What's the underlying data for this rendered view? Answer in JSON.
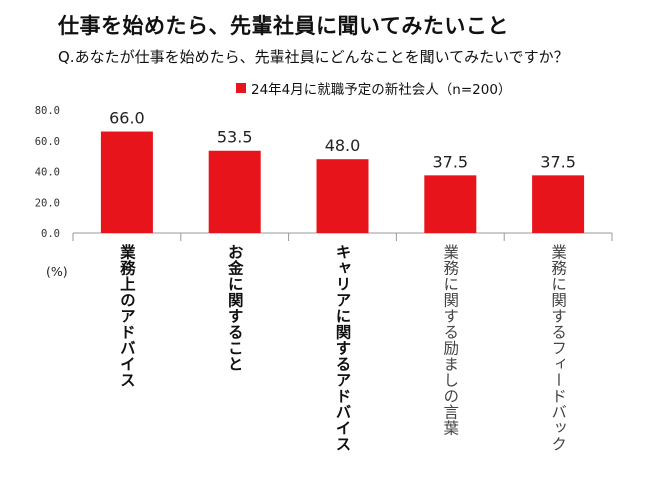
{
  "header": {
    "title": "仕事を始めたら、先輩社員に聞いてみたいこと",
    "question": "Q.あなたが仕事を始めたら、先輩社員にどんなことを聞いてみたいですか？"
  },
  "unit_label": "(%)",
  "colors": {
    "bar": "#e8141b",
    "axis": "#999999",
    "grid": "#d9d9d9"
  },
  "chart_data": {
    "type": "bar",
    "title": "仕事を始めたら、先輩社員に聞いてみたいこと",
    "ylabel": "(%)",
    "ylim": [
      0,
      80
    ],
    "yticks": [
      "0.0",
      "20.0",
      "40.0",
      "60.0",
      "80.0"
    ],
    "grid": false,
    "legend_position": "top",
    "categories": [
      "業務上のアドバイス",
      "お金に関すること",
      "キャリアに関するアドバイス",
      "業務に関する励ましの言葉",
      "業務に関するフィードバック"
    ],
    "series": [
      {
        "name": "24年4月に就職予定の新社会人（n=200）",
        "values": [
          66.0,
          53.5,
          48.0,
          37.5,
          37.5
        ]
      }
    ],
    "data_labels": [
      "66.0",
      "53.5",
      "48.0",
      "37.5",
      "37.5"
    ],
    "label_weight": [
      "bold",
      "bold",
      "bold",
      "light",
      "light"
    ]
  }
}
